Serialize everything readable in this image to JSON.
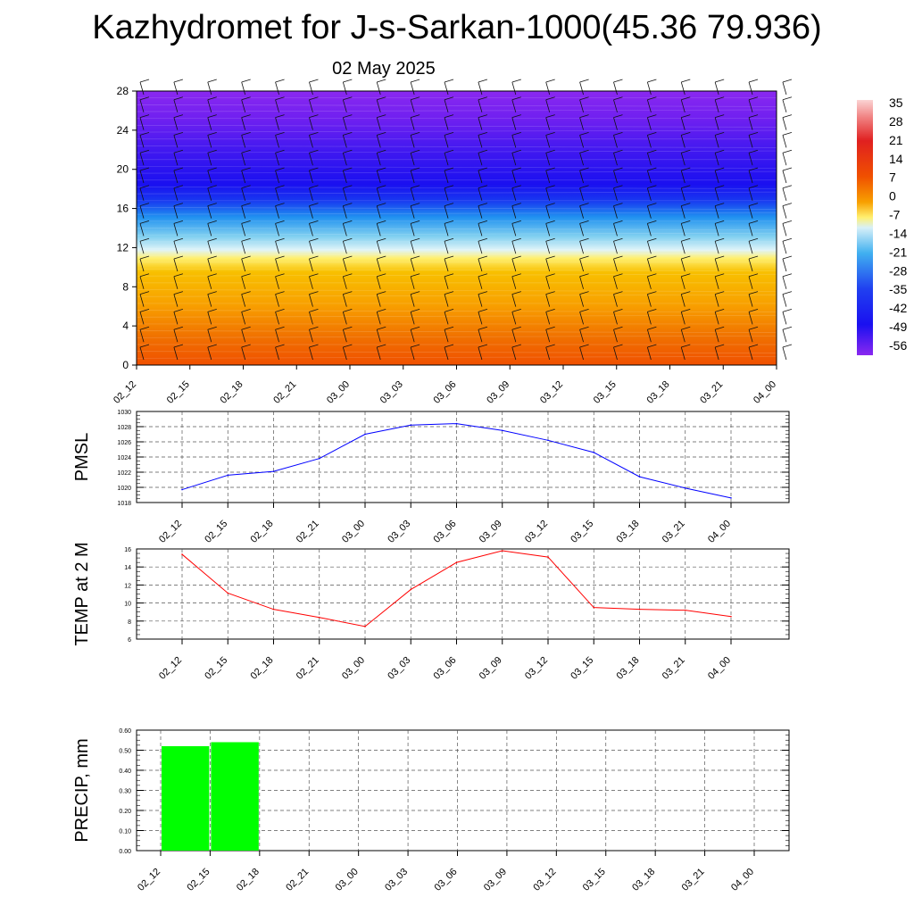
{
  "header": {
    "title": "Kazhydromet for J-s-Sarkan-1000(45.36 79.936)",
    "date": "02 May 2025"
  },
  "colorbar": {
    "labels": [
      "35",
      "28",
      "21",
      "14",
      "7",
      "0",
      "-7",
      "-14",
      "-21",
      "-28",
      "-35",
      "-42",
      "-49",
      "-56"
    ],
    "colors": [
      "#fbd3d3",
      "#f08080",
      "#e02020",
      "#e83010",
      "#f06000",
      "#f8a000",
      "#fff070",
      "#d8f0f8",
      "#60c8f0",
      "#2090f0",
      "#2040f0",
      "#1a10f0",
      "#5018f0",
      "#8a28f0"
    ]
  },
  "chart_data": [
    {
      "type": "heatmap",
      "title": "",
      "x_categories": [
        "02_12",
        "02_15",
        "02_18",
        "02_21",
        "03_00",
        "03_03",
        "03_06",
        "03_09",
        "03_12",
        "03_15",
        "03_18",
        "03_21",
        "04_00"
      ],
      "y_ticks": [
        0,
        4,
        8,
        12,
        16,
        20,
        24,
        28
      ],
      "ylim": [
        0,
        28
      ],
      "description_layers": [
        {
          "height_range": [
            0,
            3
          ],
          "temp_approx": 14
        },
        {
          "height_range": [
            3,
            8
          ],
          "temp_approx": 7
        },
        {
          "height_range": [
            8,
            11
          ],
          "temp_approx": 0
        },
        {
          "height_range": [
            11,
            13
          ],
          "temp_approx": -14
        },
        {
          "height_range": [
            13,
            16
          ],
          "temp_approx": -28
        },
        {
          "height_range": [
            16,
            18
          ],
          "temp_approx": -42
        },
        {
          "height_range": [
            18,
            23
          ],
          "temp_approx": -56
        },
        {
          "height_range": [
            23,
            28
          ],
          "temp_approx": -56
        }
      ]
    },
    {
      "type": "line",
      "ylabel": "PMSL",
      "color": "#0000ff",
      "x_categories": [
        "02_12",
        "02_15",
        "02_18",
        "02_21",
        "03_00",
        "03_03",
        "03_06",
        "03_09",
        "03_12",
        "03_15",
        "03_18",
        "03_21",
        "04_00"
      ],
      "values": [
        1019.7,
        1021.6,
        1022.1,
        1023.8,
        1027.0,
        1028.2,
        1028.4,
        1027.5,
        1026.2,
        1024.6,
        1021.4,
        1019.9,
        1018.6
      ],
      "y_ticks": [
        1018,
        1020,
        1022,
        1024,
        1026,
        1028,
        1030
      ],
      "ylim": [
        1018,
        1030
      ]
    },
    {
      "type": "line",
      "ylabel": "TEMP at 2 M",
      "color": "#ff0000",
      "x_categories": [
        "02_12",
        "02_15",
        "02_18",
        "02_21",
        "03_00",
        "03_03",
        "03_06",
        "03_09",
        "03_12",
        "03_15",
        "03_18",
        "03_21",
        "04_00"
      ],
      "values": [
        15.4,
        11.1,
        9.3,
        8.4,
        7.4,
        11.5,
        14.5,
        15.8,
        15.1,
        9.5,
        9.3,
        9.2,
        8.5
      ],
      "y_ticks": [
        6,
        8,
        10,
        12,
        14,
        16
      ],
      "ylim": [
        6,
        16
      ]
    },
    {
      "type": "bar",
      "ylabel": "PRECIP, mm",
      "color": "#00ff00",
      "x_categories": [
        "02_12",
        "02_15",
        "02_18",
        "02_21",
        "03_00",
        "03_03",
        "03_06",
        "03_09",
        "03_12",
        "03_15",
        "03_18",
        "03_21",
        "04_00"
      ],
      "values": [
        0,
        0.52,
        0.54,
        0,
        0,
        0,
        0,
        0,
        0,
        0,
        0,
        0,
        0
      ],
      "y_ticks": [
        "0.00",
        "0.10",
        "0.20",
        "0.30",
        "0.40",
        "0.50",
        "0.60"
      ],
      "ylim": [
        0,
        0.6
      ]
    }
  ]
}
